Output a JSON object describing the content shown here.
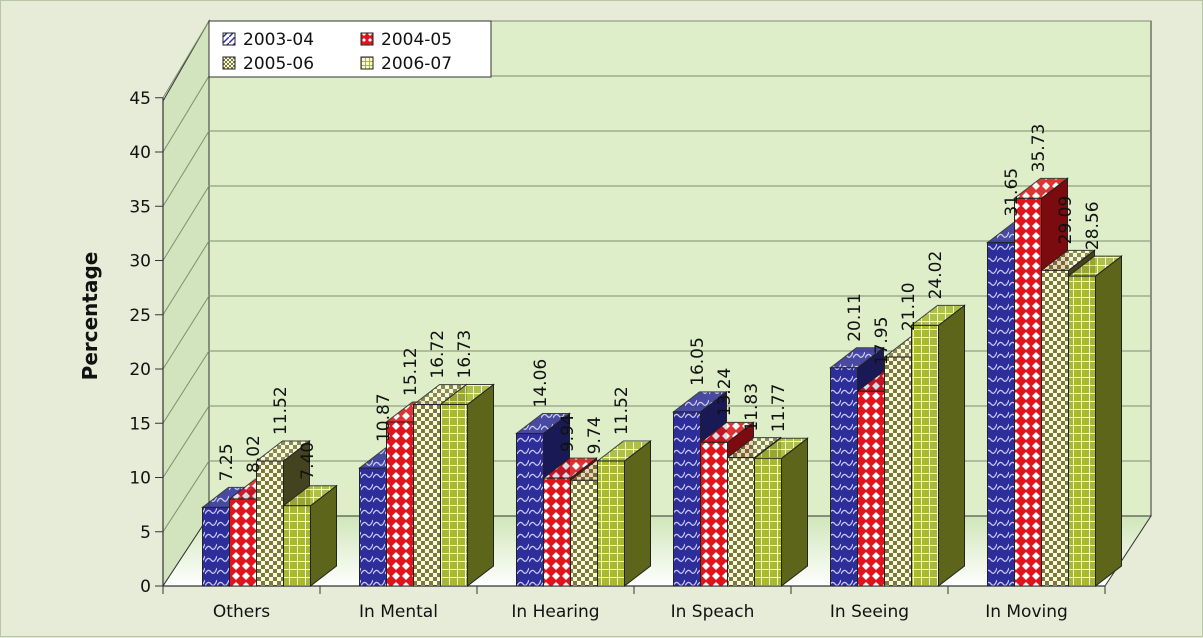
{
  "chart_data": {
    "type": "bar",
    "style": "3d-clustered-column",
    "categories": [
      "Others",
      "In Mental",
      "In Hearing",
      "In Speach",
      "In Seeing",
      "In Moving"
    ],
    "series": [
      {
        "name": "2003-04",
        "values": [
          7.25,
          10.87,
          14.06,
          16.05,
          20.11,
          31.65
        ],
        "labels": [
          "7.25",
          "10.87",
          "14.06",
          "16.05",
          "20.11",
          "31.65"
        ],
        "color": "#2e2e9a"
      },
      {
        "name": "2004-05",
        "values": [
          8.02,
          15.12,
          9.94,
          13.24,
          17.95,
          35.73
        ],
        "labels": [
          "8.02",
          "15.12",
          "9.94",
          "13.24",
          "17.95",
          "35.73"
        ],
        "color": "#e0141c"
      },
      {
        "name": "2005-06",
        "values": [
          11.52,
          16.72,
          9.74,
          11.83,
          21.1,
          29.09
        ],
        "labels": [
          "11.52",
          "16.72",
          "9.74",
          "11.83",
          "21.10",
          "29.09"
        ],
        "color": "#7a7a3a"
      },
      {
        "name": "2006-07",
        "values": [
          7.4,
          16.73,
          11.52,
          11.77,
          24.02,
          28.56
        ],
        "labels": [
          "7.40",
          "16.73",
          "11.52",
          "11.77",
          "24.02",
          "28.56"
        ],
        "color": "#a8b830"
      }
    ],
    "ylabel": "Percentage",
    "xlabel": "",
    "ylim": [
      0,
      45
    ],
    "yticks": [
      0,
      5,
      10,
      15,
      20,
      25,
      30,
      35,
      40,
      45
    ],
    "grid": true,
    "legend": "top-left"
  }
}
